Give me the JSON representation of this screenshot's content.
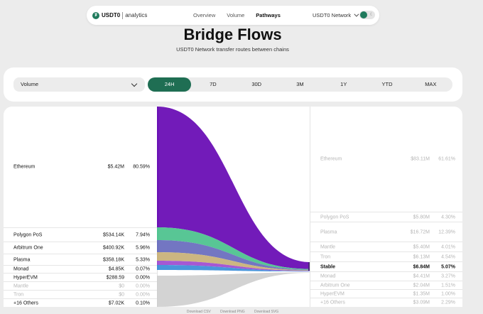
{
  "nav": {
    "brand": "USDT0",
    "brand_sub": "analytics",
    "links": [
      "Overview",
      "Volume",
      "Pathways"
    ],
    "active_link": "Pathways",
    "network": "USDT0 Network"
  },
  "header": {
    "title": "Bridge Flows",
    "subtitle": "USDT0 Network transfer routes between chains"
  },
  "controls": {
    "metric": "Volume",
    "ranges": [
      "24H",
      "7D",
      "30D",
      "3M",
      "1Y",
      "YTD",
      "MAX"
    ],
    "active_range": "24H"
  },
  "sources": [
    {
      "name": "Ethereum",
      "value": "$5.42M",
      "pct": "80.59%",
      "color": "#6a0fb5"
    },
    {
      "name": "Polygon PoS",
      "value": "$534.14K",
      "pct": "7.94%",
      "color": "#4fc38f"
    },
    {
      "name": "Arbitrum One",
      "value": "$400.92K",
      "pct": "5.96%",
      "color": "#6b6fbf"
    },
    {
      "name": "Plasma",
      "value": "$358.18K",
      "pct": "5.33%",
      "color": "#c9b27a"
    },
    {
      "name": "Monad",
      "value": "$4.85K",
      "pct": "0.07%",
      "color": "#a14fd1"
    },
    {
      "name": "HyperEVM",
      "value": "$288.59",
      "pct": "0.00%",
      "color": "#3f8fd9"
    },
    {
      "name": "Mantle",
      "value": "$0",
      "pct": "0.00%"
    },
    {
      "name": "Tron",
      "value": "$0",
      "pct": "0.00%"
    },
    {
      "name": "+16 Others",
      "value": "$7.02K",
      "pct": "0.10%"
    }
  ],
  "destinations": [
    {
      "name": "Ethereum",
      "value": "$83.11M",
      "pct": "61.61%"
    },
    {
      "name": "Polygon PoS",
      "value": "$5.80M",
      "pct": "4.30%"
    },
    {
      "name": "Plasma",
      "value": "$16.72M",
      "pct": "12.39%"
    },
    {
      "name": "Mantle",
      "value": "$5.40M",
      "pct": "4.01%"
    },
    {
      "name": "Tron",
      "value": "$6.13M",
      "pct": "4.54%"
    },
    {
      "name": "Stable",
      "value": "$6.84M",
      "pct": "5.07%"
    },
    {
      "name": "Monad",
      "value": "$4.41M",
      "pct": "3.27%"
    },
    {
      "name": "Arbitrum One",
      "value": "$2.04M",
      "pct": "1.51%"
    },
    {
      "name": "HyperEVM",
      "value": "$1.35M",
      "pct": "1.00%"
    },
    {
      "name": "+16 Others",
      "value": "$3.09M",
      "pct": "2.29%"
    }
  ],
  "highlighted_destination": "Stable",
  "footer": [
    "Download CSV",
    "Download PNG",
    "Download SVG"
  ]
}
